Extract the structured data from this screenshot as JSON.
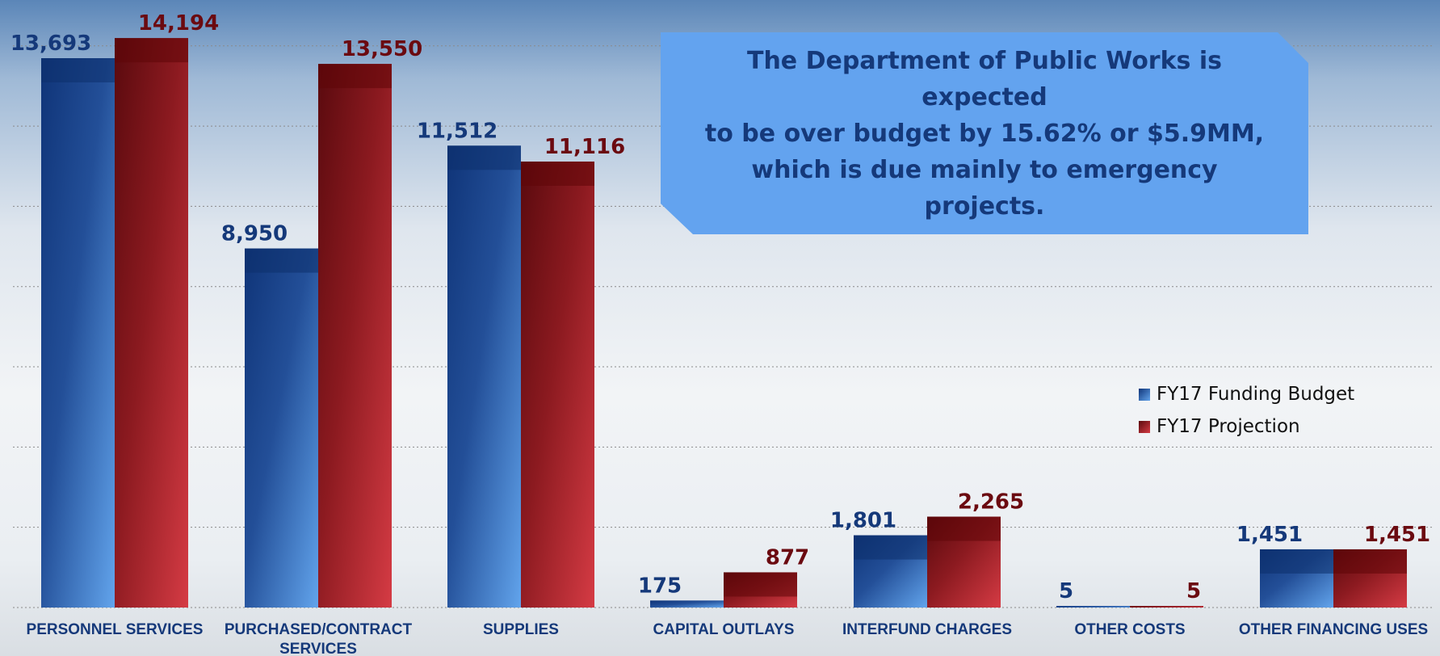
{
  "chart_data": {
    "type": "bar",
    "categories": [
      "PERSONNEL SERVICES",
      "PURCHASED/CONTRACT\nSERVICES",
      "SUPPLIES",
      "CAPITAL OUTLAYS",
      "INTERFUND CHARGES",
      "OTHER COSTS",
      "OTHER FINANCING USES"
    ],
    "series": [
      {
        "name": "FY17 Funding Budget",
        "values": [
          13693,
          8950,
          11512,
          175,
          1801,
          5,
          1451
        ],
        "labels": [
          "13,693",
          "8,950",
          "11,512",
          "175",
          "1,801",
          "5",
          "1,451"
        ],
        "color": "#1a4a9a"
      },
      {
        "name": "FY17 Projection",
        "values": [
          14194,
          13550,
          11116,
          877,
          2265,
          5,
          1451
        ],
        "labels": [
          "14,194",
          "13,550",
          "11,116",
          "877",
          "2,265",
          "5",
          "1,451"
        ],
        "color": "#9a1c22"
      }
    ],
    "ylim": [
      0,
      16000
    ],
    "grid": true,
    "legend": "right",
    "annotation": "The Department of Public Works is expected\nto be over budget by 15.62% or $5.9MM,\nwhich is due mainly to emergency projects."
  }
}
